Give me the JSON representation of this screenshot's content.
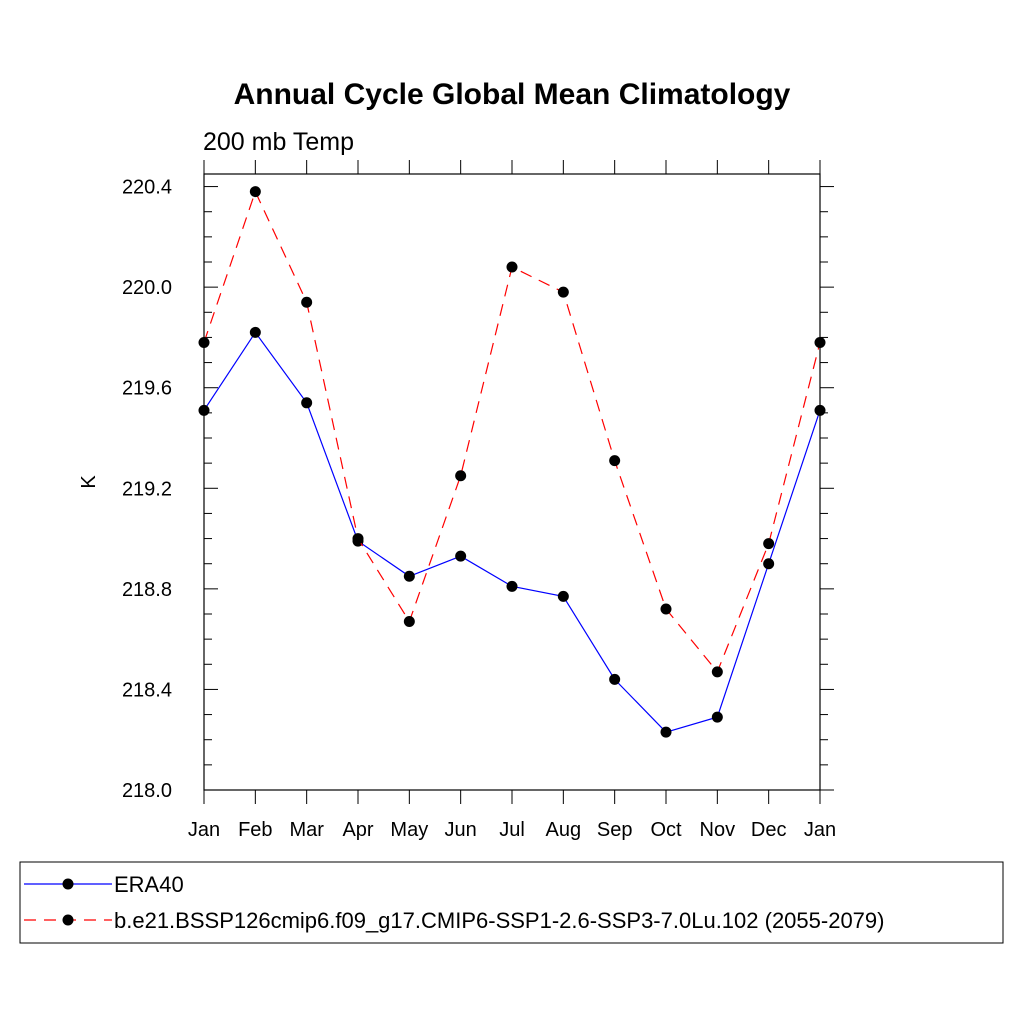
{
  "chart_data": {
    "type": "line",
    "title": "Annual Cycle Global Mean Climatology",
    "subtitle": "200 mb Temp",
    "xlabel": "",
    "ylabel": "K",
    "categories": [
      "Jan",
      "Feb",
      "Mar",
      "Apr",
      "May",
      "Jun",
      "Jul",
      "Aug",
      "Sep",
      "Oct",
      "Nov",
      "Dec",
      "Jan"
    ],
    "ylim": [
      218.0,
      220.45
    ],
    "yticks": [
      "218.0",
      "218.4",
      "218.8",
      "219.2",
      "219.6",
      "220.0",
      "220.4"
    ],
    "yticks_values": [
      218.0,
      218.4,
      218.8,
      219.2,
      219.6,
      220.0,
      220.4
    ],
    "grid": false,
    "legend_placement": "bottom",
    "series": [
      {
        "name": "ERA40",
        "color": "#0000ff",
        "line_style": "solid",
        "marker": "filled-circle",
        "values": [
          219.51,
          219.82,
          219.54,
          218.99,
          218.85,
          218.93,
          218.81,
          218.77,
          218.44,
          218.23,
          218.29,
          218.9,
          219.51
        ]
      },
      {
        "name": "b.e21.BSSP126cmip6.f09_g17.CMIP6-SSP1-2.6-SSP3-7.0Lu.102 (2055-2079)",
        "color": "#ff0000",
        "line_style": "dashed",
        "marker": "filled-circle",
        "values": [
          219.78,
          220.38,
          219.94,
          219.0,
          218.67,
          219.25,
          220.08,
          219.98,
          219.31,
          218.72,
          218.47,
          218.98,
          219.78
        ]
      }
    ]
  }
}
